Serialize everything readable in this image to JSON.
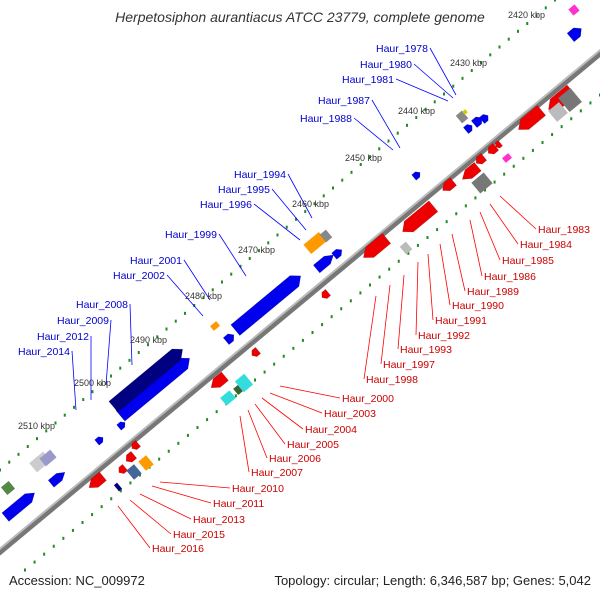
{
  "title": "Herpetosiphon aurantiacus ATCC 23779, complete genome",
  "accession": "Accession: NC_009972",
  "topology": "Topology: circular; Length: 6,346,587 bp; Genes: 5,042",
  "colors": {
    "forward_gene": "#0000ee",
    "reverse_gene": "#ee0000",
    "label_forward": "#0000cc",
    "label_reverse": "#cc0000",
    "backbone": "#888888",
    "tick": "#228b22",
    "rna": "#ff9900"
  },
  "scale_labels": [
    "2420 kbp",
    "2430 kbp",
    "2440 kbp",
    "2450 kbp",
    "2460 kbp",
    "2470 kbp",
    "2480 kbp",
    "2490 kbp",
    "2500 kbp",
    "2510 kbp"
  ],
  "forward_labels": [
    "Haur_1978",
    "Haur_1980",
    "Haur_1981",
    "Haur_1987",
    "Haur_1988",
    "Haur_1994",
    "Haur_1995",
    "Haur_1996",
    "Haur_1999",
    "Haur_2001",
    "Haur_2002",
    "Haur_2008",
    "Haur_2009",
    "Haur_2012",
    "Haur_2014"
  ],
  "reverse_labels": [
    "Haur_1983",
    "Haur_1984",
    "Haur_1985",
    "Haur_1986",
    "Haur_1989",
    "Haur_1990",
    "Haur_1991",
    "Haur_1992",
    "Haur_1993",
    "Haur_1997",
    "Haur_1998",
    "Haur_2000",
    "Haur_2003",
    "Haur_2004",
    "Haur_2005",
    "Haur_2006",
    "Haur_2007",
    "Haur_2010",
    "Haur_2011",
    "Haur_2013",
    "Haur_2015",
    "Haur_2016"
  ]
}
